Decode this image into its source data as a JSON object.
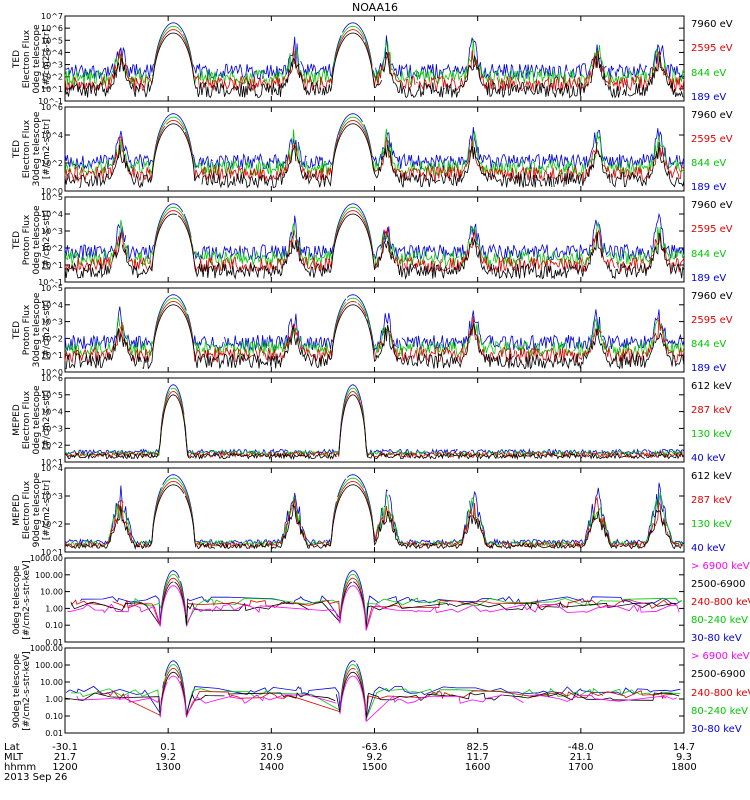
{
  "title": "NOAA16",
  "panels": [
    {
      "ylabel": [
        "TED",
        "Electron Flux",
        "0deg telescope",
        "[#/cm2-s-str]"
      ],
      "yticks": [
        "10^-1",
        "10^1",
        "10^2",
        "10^3",
        "10^4",
        "10^5",
        "10^6",
        "10^7"
      ],
      "legend": [
        {
          "text": "7960 eV",
          "color": "#000000"
        },
        {
          "text": "2595 eV",
          "color": "#e00000"
        },
        {
          "text": "844 eV",
          "color": "#00c800"
        },
        {
          "text": "189 eV",
          "color": "#0000e0"
        }
      ]
    },
    {
      "ylabel": [
        "TED",
        "Electron Flux",
        "30deg telescope",
        "[#/cm2-s-str]"
      ],
      "yticks": [
        "10^0",
        "10^2",
        "10^4",
        "10^6"
      ],
      "legend": [
        {
          "text": "7960 eV",
          "color": "#000000"
        },
        {
          "text": "2595 eV",
          "color": "#e00000"
        },
        {
          "text": "844 eV",
          "color": "#00c800"
        },
        {
          "text": "189 eV",
          "color": "#0000e0"
        }
      ]
    },
    {
      "ylabel": [
        "TED",
        "Proton Flux",
        "0deg telescope",
        "[#/cm2-s-str]"
      ],
      "yticks": [
        "10^-1",
        "10^1",
        "10^2",
        "10^3",
        "10^4",
        "10^5"
      ],
      "legend": [
        {
          "text": "7960 eV",
          "color": "#000000"
        },
        {
          "text": "2595 eV",
          "color": "#e00000"
        },
        {
          "text": "844 eV",
          "color": "#00c800"
        },
        {
          "text": "189 eV",
          "color": "#0000e0"
        }
      ]
    },
    {
      "ylabel": [
        "TED",
        "Proton Flux",
        "30deg telescope",
        "[#/cm2-s-str]"
      ],
      "yticks": [
        "10^0",
        "10^1",
        "10^2",
        "10^3",
        "10^4",
        "10^5"
      ],
      "legend": [
        {
          "text": "7960 eV",
          "color": "#000000"
        },
        {
          "text": "2595 eV",
          "color": "#e00000"
        },
        {
          "text": "844 eV",
          "color": "#00c800"
        },
        {
          "text": "189 eV",
          "color": "#0000e0"
        }
      ]
    },
    {
      "ylabel": [
        "MEPED",
        "Electron Flux",
        "0deg telescope",
        "[#/cm2-s-str]"
      ],
      "yticks": [
        "10^1",
        "10^2",
        "10^3",
        "10^4",
        "10^5",
        "10^6"
      ],
      "legend": [
        {
          "text": "612 keV",
          "color": "#000000"
        },
        {
          "text": "287 keV",
          "color": "#e00000"
        },
        {
          "text": "130 keV",
          "color": "#00c800"
        },
        {
          "text": "40 keV",
          "color": "#0000e0"
        }
      ]
    },
    {
      "ylabel": [
        "MEPED",
        "Electron Flux",
        "90deg telescope",
        "[#/cm2-s-str]"
      ],
      "yticks": [
        "10^1",
        "10^2",
        "10^3",
        "10^4"
      ],
      "legend": [
        {
          "text": "612 keV",
          "color": "#000000"
        },
        {
          "text": "287 keV",
          "color": "#e00000"
        },
        {
          "text": "130 keV",
          "color": "#00c800"
        },
        {
          "text": "40 keV",
          "color": "#0000e0"
        }
      ]
    },
    {
      "ylabel": [
        "0deg telescope",
        "[#/cm2-s-str-keV]"
      ],
      "yticks": [
        "0.01",
        "0.10",
        "1.00",
        "10.00",
        "100.00",
        "1000.00"
      ],
      "legend": [
        {
          "text": "> 6900 keV",
          "color": "#ff00ff"
        },
        {
          "text": "2500-6900",
          "color": "#000000"
        },
        {
          "text": "240-800 keV",
          "color": "#e00000"
        },
        {
          "text": "80-240 keV",
          "color": "#00c800"
        },
        {
          "text": "30-80 keV",
          "color": "#0000e0"
        }
      ]
    },
    {
      "ylabel": [
        "90deg telescope",
        "[#/cm2-s-str-keV]"
      ],
      "yticks": [
        "0.01",
        "0.10",
        "1.00",
        "10.00",
        "100.00",
        "1000.00"
      ],
      "legend": [
        {
          "text": "> 6900 keV",
          "color": "#ff00ff"
        },
        {
          "text": "2500-6900",
          "color": "#000000"
        },
        {
          "text": "240-800 keV",
          "color": "#e00000"
        },
        {
          "text": "80-240 keV",
          "color": "#00c800"
        },
        {
          "text": "30-80 keV",
          "color": "#0000e0"
        }
      ]
    }
  ],
  "xaxis": {
    "row_labels": [
      "Lat",
      "MLT",
      "hhmm",
      "2013 Sep 26"
    ],
    "ticks": [
      {
        "lat": "-30.1",
        "mlt": "21.7",
        "hhmm": "1200"
      },
      {
        "lat": "0.1",
        "mlt": "9.2",
        "hhmm": "1300"
      },
      {
        "lat": "31.0",
        "mlt": "20.9",
        "hhmm": "1400"
      },
      {
        "lat": "-63.6",
        "mlt": "9.2",
        "hhmm": "1500"
      },
      {
        "lat": "82.5",
        "mlt": "11.7",
        "hhmm": "1600"
      },
      {
        "lat": "-48.0",
        "mlt": "21.1",
        "hhmm": "1700"
      },
      {
        "lat": "14.7",
        "mlt": "9.3",
        "hhmm": "1800"
      }
    ]
  },
  "chart_data": {
    "type": "line",
    "title": "NOAA16",
    "x_range": [
      "1200",
      "1800"
    ],
    "x_unit": "hhmm",
    "date": "2013 Sep 26",
    "y_scale": "log",
    "panel_count": 8,
    "series_per_panel": [
      [
        "7960 eV",
        "2595 eV",
        "844 eV",
        "189 eV"
      ],
      [
        "7960 eV",
        "2595 eV",
        "844 eV",
        "189 eV"
      ],
      [
        "7960 eV",
        "2595 eV",
        "844 eV",
        "189 eV"
      ],
      [
        "7960 eV",
        "2595 eV",
        "844 eV",
        "189 eV"
      ],
      [
        "612 keV",
        "287 keV",
        "130 keV",
        "40 keV"
      ],
      [
        "612 keV",
        "287 keV",
        "130 keV",
        "40 keV"
      ],
      [
        "> 6900 keV",
        "2500-6900",
        "240-800 keV",
        "80-240 keV",
        "30-80 keV"
      ],
      [
        "> 6900 keV",
        "2500-6900",
        "240-800 keV",
        "80-240 keV",
        "30-80 keV"
      ]
    ]
  }
}
